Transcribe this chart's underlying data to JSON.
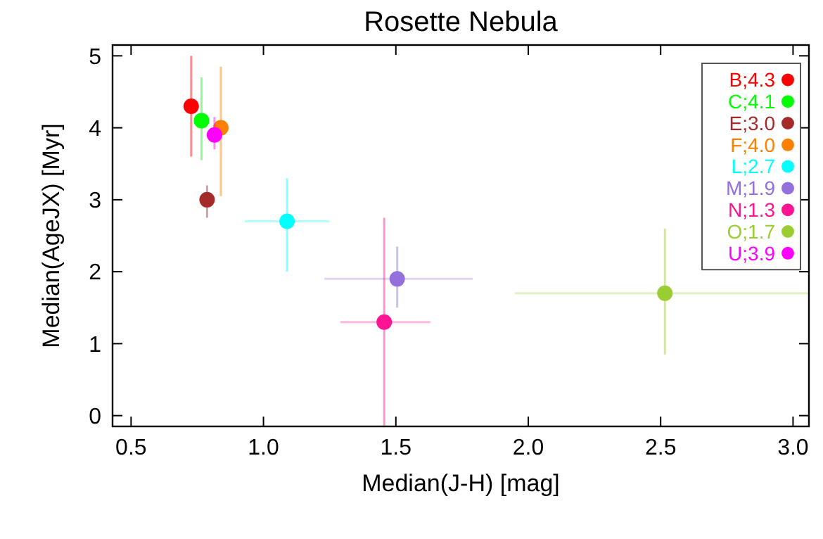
{
  "chart_data": {
    "type": "scatter",
    "title": "Rosette Nebula",
    "xlabel": "Median(J-H) [mag]",
    "ylabel": "Median(AgeJX) [Myr]",
    "xlim": [
      0.43,
      3.06
    ],
    "ylim": [
      -0.15,
      5.15
    ],
    "xticks": [
      {
        "value": 0.5,
        "label": "0.5"
      },
      {
        "value": 1,
        "label": "1.0"
      },
      {
        "value": 1.5,
        "label": "1.5"
      },
      {
        "value": 2,
        "label": "2.0"
      },
      {
        "value": 2.5,
        "label": "2.5"
      },
      {
        "value": 3,
        "label": "3.0"
      }
    ],
    "yticks": [
      0,
      1,
      2,
      3,
      4,
      5
    ],
    "marker": "circle",
    "legend": "top right",
    "grid": false,
    "series": [
      {
        "name": "B;4.3",
        "color": "#ff0000",
        "x": [
          0.727
        ],
        "values": [
          4.3
        ],
        "errors": [
          [
            3.6,
            5.0
          ]
        ]
      },
      {
        "name": "C;4.1",
        "color": "#00ff00",
        "x": [
          0.766
        ],
        "values": [
          4.1
        ],
        "errors": [
          [
            3.55,
            4.7
          ]
        ]
      },
      {
        "name": "E;3.0",
        "color": "#a52a2a",
        "x": [
          0.787
        ],
        "values": [
          3.0
        ],
        "errors": [
          [
            2.75,
            3.2
          ]
        ]
      },
      {
        "name": "F;4.0",
        "color": "#ff8000",
        "x": [
          0.839
        ],
        "values": [
          4.0
        ],
        "errors": [
          [
            3.05,
            4.85
          ]
        ]
      },
      {
        "name": "L;2.7",
        "color": "#00ffff",
        "x": [
          1.089
        ],
        "values": [
          2.7
        ],
        "errors": [
          [
            2.0,
            3.3
          ]
        ],
        "xerrors": [
          [
            0.93,
            1.25
          ]
        ]
      },
      {
        "name": "M;1.9",
        "color": "#9370db",
        "x": [
          1.505
        ],
        "values": [
          1.9
        ],
        "errors": [
          [
            1.5,
            2.35
          ]
        ],
        "xerrors": [
          [
            1.23,
            1.79
          ]
        ]
      },
      {
        "name": "N;1.3",
        "color": "#ff1493",
        "x": [
          1.456
        ],
        "values": [
          1.3
        ],
        "errors": [
          [
            -0.15,
            2.75
          ]
        ],
        "xerrors": [
          [
            1.29,
            1.63
          ]
        ]
      },
      {
        "name": "O;1.7",
        "color": "#9acd32",
        "x": [
          2.516
        ],
        "values": [
          1.7
        ],
        "errors": [
          [
            0.85,
            2.6
          ]
        ],
        "xerrors": [
          [
            1.95,
            3.06
          ]
        ]
      },
      {
        "name": "U;3.9",
        "color": "#ff00ff",
        "x": [
          0.815
        ],
        "values": [
          3.9
        ],
        "errors": [
          [
            3.7,
            4.15
          ]
        ]
      }
    ]
  }
}
